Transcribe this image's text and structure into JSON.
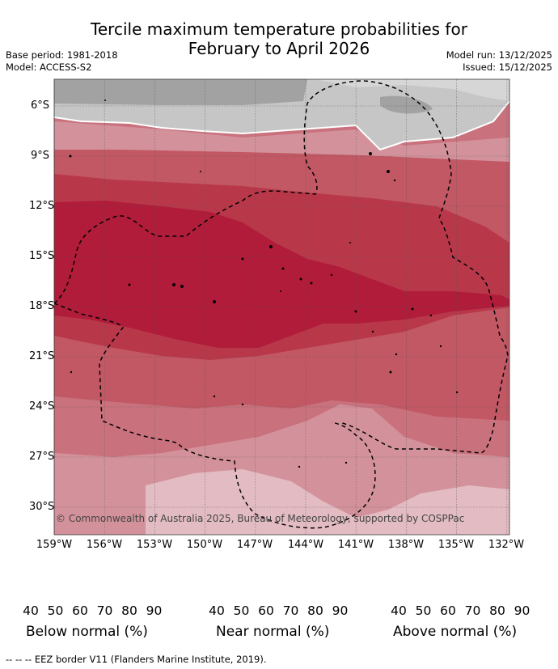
{
  "title_line1": "Tercile maximum temperature probabilities for",
  "title_line2": "February to April 2026",
  "base_period": "Base period: 1981-2018",
  "model": "Model: ACCESS-S2",
  "model_run": "Model run: 13/12/2025",
  "issued": "Issued: 15/12/2025",
  "lat_labels": [
    "6°S",
    "9°S",
    "12°S",
    "15°S",
    "18°S",
    "21°S",
    "24°S",
    "27°S",
    "30°S"
  ],
  "lon_labels": [
    "159°W",
    "156°W",
    "153°W",
    "150°W",
    "147°W",
    "144°W",
    "141°W",
    "138°W",
    "135°W",
    "132°W"
  ],
  "copyright": "© Commonwealth of Australia 2025, Bureau of Meteorology, supported by COSPPac",
  "colorbars": [
    {
      "label": "Below normal (%)",
      "ticks": [
        "40",
        "50",
        "60",
        "70",
        "80",
        "90"
      ],
      "colors": [
        "#cfe3ea",
        "#a8c9d2",
        "#89b8c4",
        "#6eaabb",
        "#4a9fb2",
        "#3aa0b8"
      ]
    },
    {
      "label": "Near normal (%)",
      "ticks": [
        "40",
        "50",
        "60",
        "70",
        "80",
        "90"
      ],
      "colors": [
        "#e6e6e6",
        "#d6d6d6",
        "#c6c6c6",
        "#b4b4b4",
        "#a2a2a2",
        "#8e8e8e"
      ]
    },
    {
      "label": "Above normal (%)",
      "ticks": [
        "40",
        "50",
        "60",
        "70",
        "80",
        "90"
      ],
      "colors": [
        "#e2bcc2",
        "#d3929b",
        "#c9727d",
        "#c25864",
        "#b8384a",
        "#b01c3a"
      ]
    }
  ],
  "eez_note": "EEZ border V11 (Flanders Marine Institute, 2019).",
  "eez_dash": "-- -- --"
}
